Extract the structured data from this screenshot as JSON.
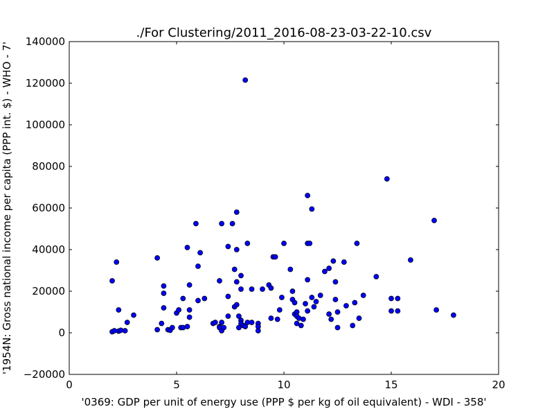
{
  "chart_data": {
    "type": "scatter",
    "title": "./For Clustering/2011_2016-08-23-03-22-10.csv",
    "xlabel": "'0369: GDP per unit of energy use  (PPP $ per kg of oil equivalent) - WDI - 358'",
    "ylabel": "'1954N: Gross national income per capita (PPP int. $) - WHO - 7'",
    "xlim": [
      0,
      20
    ],
    "ylim": [
      -20000,
      140000
    ],
    "xticks": [
      "0",
      "5",
      "10",
      "15",
      "20"
    ],
    "yticks": [
      "−20000",
      "0",
      "20000",
      "40000",
      "60000",
      "80000",
      "100000",
      "120000",
      "140000"
    ],
    "grid": false,
    "marker_color": "#0000ff",
    "points": [
      {
        "x": 2.0,
        "y": 25000
      },
      {
        "x": 2.0,
        "y": 500
      },
      {
        "x": 2.1,
        "y": 1000
      },
      {
        "x": 2.2,
        "y": 34000
      },
      {
        "x": 2.3,
        "y": 800
      },
      {
        "x": 2.3,
        "y": 11000
      },
      {
        "x": 2.4,
        "y": 1200
      },
      {
        "x": 2.6,
        "y": 1000
      },
      {
        "x": 2.7,
        "y": 5000
      },
      {
        "x": 3.0,
        "y": 8500
      },
      {
        "x": 4.1,
        "y": 1500
      },
      {
        "x": 4.1,
        "y": 36000
      },
      {
        "x": 4.3,
        "y": 4500
      },
      {
        "x": 4.4,
        "y": 22500
      },
      {
        "x": 4.4,
        "y": 19000
      },
      {
        "x": 4.4,
        "y": 12000
      },
      {
        "x": 4.6,
        "y": 1500
      },
      {
        "x": 4.7,
        "y": 1200
      },
      {
        "x": 4.8,
        "y": 2500
      },
      {
        "x": 5.0,
        "y": 9500
      },
      {
        "x": 5.1,
        "y": 11000
      },
      {
        "x": 5.2,
        "y": 2500
      },
      {
        "x": 5.3,
        "y": 16500
      },
      {
        "x": 5.3,
        "y": 2500
      },
      {
        "x": 5.5,
        "y": 41000
      },
      {
        "x": 5.5,
        "y": 3000
      },
      {
        "x": 5.6,
        "y": 23000
      },
      {
        "x": 5.6,
        "y": 11000
      },
      {
        "x": 5.6,
        "y": 7500
      },
      {
        "x": 5.9,
        "y": 52500
      },
      {
        "x": 6.0,
        "y": 15500
      },
      {
        "x": 6.0,
        "y": 32000
      },
      {
        "x": 6.1,
        "y": 38500
      },
      {
        "x": 6.3,
        "y": 16500
      },
      {
        "x": 6.7,
        "y": 4500
      },
      {
        "x": 6.8,
        "y": 5000
      },
      {
        "x": 7.0,
        "y": 25000
      },
      {
        "x": 7.0,
        "y": 3000
      },
      {
        "x": 7.0,
        "y": 2500
      },
      {
        "x": 7.1,
        "y": 5000
      },
      {
        "x": 7.1,
        "y": 52500
      },
      {
        "x": 7.1,
        "y": 1000
      },
      {
        "x": 7.2,
        "y": 2500
      },
      {
        "x": 7.4,
        "y": 41500
      },
      {
        "x": 7.4,
        "y": 17500
      },
      {
        "x": 7.4,
        "y": 8000
      },
      {
        "x": 7.6,
        "y": 52500
      },
      {
        "x": 7.7,
        "y": 30500
      },
      {
        "x": 7.7,
        "y": 12500
      },
      {
        "x": 7.8,
        "y": 58000
      },
      {
        "x": 7.8,
        "y": 40000
      },
      {
        "x": 7.8,
        "y": 13500
      },
      {
        "x": 7.8,
        "y": 24500
      },
      {
        "x": 7.9,
        "y": 8000
      },
      {
        "x": 7.9,
        "y": 2500
      },
      {
        "x": 8.0,
        "y": 27500
      },
      {
        "x": 8.0,
        "y": 21000
      },
      {
        "x": 8.0,
        "y": 6000
      },
      {
        "x": 8.0,
        "y": 4500
      },
      {
        "x": 8.1,
        "y": 3500
      },
      {
        "x": 8.2,
        "y": 121500
      },
      {
        "x": 8.2,
        "y": 3000
      },
      {
        "x": 8.3,
        "y": 5000
      },
      {
        "x": 8.3,
        "y": 43000
      },
      {
        "x": 8.5,
        "y": 5000
      },
      {
        "x": 8.5,
        "y": 21000
      },
      {
        "x": 8.8,
        "y": 4500
      },
      {
        "x": 8.8,
        "y": 3000
      },
      {
        "x": 8.8,
        "y": 1000
      },
      {
        "x": 9.0,
        "y": 21000
      },
      {
        "x": 9.3,
        "y": 23000
      },
      {
        "x": 9.4,
        "y": 21500
      },
      {
        "x": 9.4,
        "y": 7000
      },
      {
        "x": 9.5,
        "y": 36500
      },
      {
        "x": 9.6,
        "y": 36500
      },
      {
        "x": 9.7,
        "y": 6500
      },
      {
        "x": 9.8,
        "y": 11000
      },
      {
        "x": 9.9,
        "y": 17000
      },
      {
        "x": 10.0,
        "y": 43000
      },
      {
        "x": 10.3,
        "y": 30500
      },
      {
        "x": 10.4,
        "y": 20000
      },
      {
        "x": 10.4,
        "y": 16000
      },
      {
        "x": 10.5,
        "y": 14500
      },
      {
        "x": 10.5,
        "y": 9000
      },
      {
        "x": 10.6,
        "y": 10000
      },
      {
        "x": 10.6,
        "y": 4500
      },
      {
        "x": 10.6,
        "y": 8000
      },
      {
        "x": 10.7,
        "y": 7000
      },
      {
        "x": 10.8,
        "y": 3500
      },
      {
        "x": 10.9,
        "y": 6500
      },
      {
        "x": 11.0,
        "y": 14000
      },
      {
        "x": 11.1,
        "y": 66000
      },
      {
        "x": 11.1,
        "y": 43000
      },
      {
        "x": 11.1,
        "y": 25500
      },
      {
        "x": 11.1,
        "y": 10500
      },
      {
        "x": 11.2,
        "y": 43000
      },
      {
        "x": 11.3,
        "y": 59500
      },
      {
        "x": 11.3,
        "y": 17000
      },
      {
        "x": 11.4,
        "y": 12500
      },
      {
        "x": 11.5,
        "y": 15000
      },
      {
        "x": 11.7,
        "y": 18000
      },
      {
        "x": 11.9,
        "y": 29500
      },
      {
        "x": 12.1,
        "y": 31000
      },
      {
        "x": 12.1,
        "y": 9000
      },
      {
        "x": 12.2,
        "y": 6500
      },
      {
        "x": 12.3,
        "y": 34500
      },
      {
        "x": 12.4,
        "y": 24500
      },
      {
        "x": 12.4,
        "y": 16000
      },
      {
        "x": 12.5,
        "y": 10000
      },
      {
        "x": 12.5,
        "y": 2500
      },
      {
        "x": 12.8,
        "y": 34000
      },
      {
        "x": 12.9,
        "y": 13000
      },
      {
        "x": 13.2,
        "y": 3500
      },
      {
        "x": 13.3,
        "y": 14500
      },
      {
        "x": 13.4,
        "y": 43000
      },
      {
        "x": 13.5,
        "y": 7000
      },
      {
        "x": 13.7,
        "y": 18000
      },
      {
        "x": 14.3,
        "y": 27000
      },
      {
        "x": 14.8,
        "y": 74000
      },
      {
        "x": 15.0,
        "y": 16500
      },
      {
        "x": 15.0,
        "y": 10500
      },
      {
        "x": 15.3,
        "y": 16500
      },
      {
        "x": 15.3,
        "y": 10500
      },
      {
        "x": 15.9,
        "y": 35000
      },
      {
        "x": 17.0,
        "y": 54000
      },
      {
        "x": 17.1,
        "y": 11000
      },
      {
        "x": 17.9,
        "y": 8500
      }
    ]
  }
}
